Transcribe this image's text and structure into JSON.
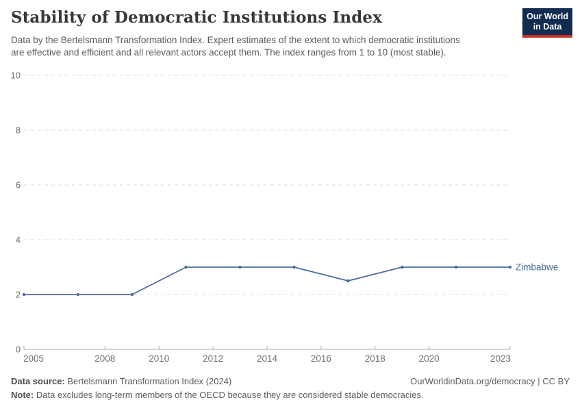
{
  "header": {
    "subtitle_lines": [
      "Data by the Bertelsmann Transformation Index. Expert estimates of the extent to which democratic institutions",
      "are effective and efficient and all relevant actors accept them. The index ranges from 1 to 10 (most stable)."
    ],
    "logo": {
      "line1": "Our World",
      "line2": "in Data"
    }
  },
  "chart_data": {
    "type": "line",
    "title": "Stability of Democratic Institutions Index",
    "subtitle": "Data by the Bertelsmann Transformation Index. Expert estimates of the extent to which democratic institutions are effective and efficient and all relevant actors accept them. The index ranges from 1 to 10 (most stable).",
    "series": [
      {
        "name": "Zimbabwe",
        "color": "#4C6A9C",
        "x": [
          2005,
          2007,
          2009,
          2011,
          2013,
          2015,
          2017,
          2019,
          2021,
          2023
        ],
        "values": [
          2,
          2,
          2,
          3,
          3,
          3,
          2.5,
          3,
          3,
          3
        ]
      }
    ],
    "x_ticks": [
      2005,
      2008,
      2010,
      2012,
      2014,
      2016,
      2018,
      2020,
      2023
    ],
    "y_ticks": [
      0,
      2,
      4,
      6,
      8,
      10
    ],
    "xlim": [
      2005,
      2023
    ],
    "ylim": [
      0,
      10
    ],
    "grid": "horizontal-dashed",
    "legend_position": "end-of-line"
  },
  "footer": {
    "source_label": "Data source:",
    "source_value": "Bertelsmann Transformation Index (2024)",
    "link": "OurWorldinData.org/democracy | CC BY",
    "note_label": "Note:",
    "note_value": "Data excludes long-term members of the OECD because they are considered stable democracies."
  },
  "colors": {
    "accent": "#4C6A9C",
    "grid": "#dcdcdc",
    "axis": "#a8a8a8",
    "tick_label": "#6e6e6e",
    "title": "#373737",
    "subtitle": "#5a5a5a",
    "footer": "#5b5b5b",
    "logo_bg": "#122c4f",
    "logo_red": "#c6302a"
  }
}
